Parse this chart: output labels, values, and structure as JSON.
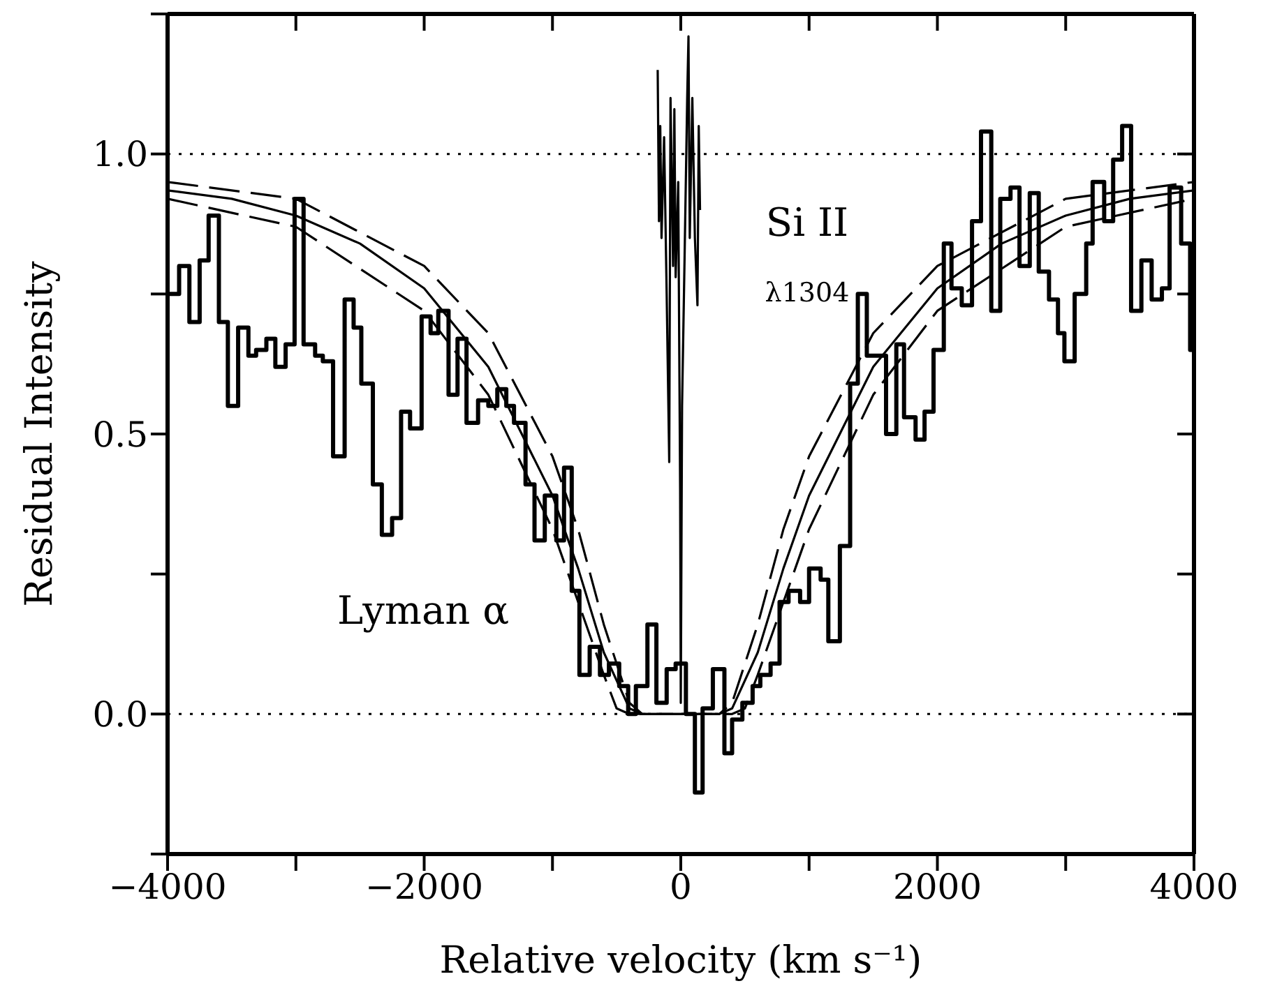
{
  "chart_data": {
    "type": "line",
    "xlabel": "Relative velocity (km s⁻¹)",
    "ylabel": "Residual Intensity",
    "xlim": [
      -4000,
      4000
    ],
    "xticks": [
      -4000,
      {
        "value": -3000,
        "label": null
      },
      -2000,
      {
        "value": -1000,
        "label": null
      },
      0,
      {
        "value": 1000,
        "label": null
      },
      2000,
      {
        "value": 3000,
        "label": null
      },
      4000
    ],
    "ylim": [
      -0.25,
      1.25
    ],
    "yticks": [
      {
        "value": -0.25,
        "label": null
      },
      {
        "value": 0,
        "label": "0.0"
      },
      {
        "value": 0.25,
        "label": null
      },
      {
        "value": 0.5,
        "label": "0.5"
      },
      {
        "value": 0.75,
        "label": null
      },
      {
        "value": 1,
        "label": "1.0"
      },
      {
        "value": 1.25,
        "label": null
      }
    ],
    "ref_lines": [
      {
        "axis": "y",
        "value": 1,
        "color": "#000000",
        "line_style": "dotted"
      },
      {
        "axis": "y",
        "value": 0,
        "color": "#000000",
        "line_style": "dotted"
      }
    ],
    "annotations": [
      "Lyman α",
      "Si II",
      "λ1304"
    ],
    "series": [
      {
        "type": "step",
        "color": "#000000",
        "line_style": "solid",
        "x": [
          -4000,
          -3910,
          -3830,
          -3750,
          -3680,
          -3600,
          -3530,
          -3450,
          -3370,
          -3310,
          -3230,
          -3160,
          -3080,
          -3010,
          -2940,
          -2850,
          -2790,
          -2710,
          -2620,
          -2550,
          -2490,
          -2400,
          -2330,
          -2250,
          -2180,
          -2110,
          -2020,
          -1950,
          -1890,
          -1810,
          -1740,
          -1670,
          -1580,
          -1500,
          -1430,
          -1360,
          -1300,
          -1210,
          -1140,
          -1060,
          -970,
          -910,
          -850,
          -790,
          -710,
          -630,
          -560,
          -480,
          -410,
          -350,
          -260,
          -190,
          -110,
          -40,
          40,
          110,
          170,
          250,
          340,
          400,
          480,
          560,
          620,
          700,
          770,
          840,
          930,
          1000,
          1090,
          1150,
          1240,
          1320,
          1380,
          1450,
          1600,
          1680,
          1740,
          1830,
          1900,
          1970,
          2050,
          2110,
          2190,
          2270,
          2340,
          2420,
          2490,
          2570,
          2640,
          2720,
          2790,
          2870,
          2940,
          2990,
          3070,
          3160,
          3210,
          3300,
          3370,
          3440,
          3510,
          3590,
          3670,
          3750,
          3810,
          3900,
          3970,
          4000
        ],
        "values": [
          0.75,
          0.8,
          0.7,
          0.81,
          0.89,
          0.7,
          0.55,
          0.69,
          0.64,
          0.65,
          0.67,
          0.62,
          0.66,
          0.92,
          0.66,
          0.64,
          0.63,
          0.46,
          0.74,
          0.69,
          0.59,
          0.41,
          0.32,
          0.35,
          0.54,
          0.51,
          0.71,
          0.68,
          0.72,
          0.57,
          0.67,
          0.52,
          0.56,
          0.55,
          0.58,
          0.55,
          0.52,
          0.41,
          0.31,
          0.39,
          0.31,
          0.44,
          0.22,
          0.07,
          0.12,
          0.07,
          0.09,
          0.05,
          0.0,
          0.05,
          0.16,
          0.02,
          0.08,
          0.09,
          0.0,
          -0.14,
          0.01,
          0.08,
          -0.07,
          -0.01,
          0.02,
          0.05,
          0.07,
          0.09,
          0.2,
          0.22,
          0.2,
          0.26,
          0.24,
          0.13,
          0.3,
          0.59,
          0.75,
          0.64,
          0.5,
          0.66,
          0.53,
          0.49,
          0.54,
          0.65,
          0.84,
          0.76,
          0.73,
          0.88,
          1.04,
          0.72,
          0.92,
          0.94,
          0.8,
          0.93,
          0.79,
          0.74,
          0.68,
          0.63,
          0.75,
          0.84,
          0.95,
          0.88,
          0.99,
          1.05,
          0.72,
          0.81,
          0.74,
          0.76,
          0.94,
          0.84,
          0.65,
          0.65
        ]
      },
      {
        "color": "#000000",
        "line_style": "solid",
        "x": [
          -4000,
          -3500,
          -3000,
          -2500,
          -2000,
          -1500,
          -1000,
          -800,
          -600,
          -400,
          -300,
          300,
          400,
          600,
          800,
          1000,
          1500,
          2000,
          2500,
          3000,
          3500,
          4000
        ],
        "values": [
          0.935,
          0.92,
          0.89,
          0.84,
          0.76,
          0.62,
          0.39,
          0.26,
          0.11,
          0.01,
          0,
          0,
          0.01,
          0.11,
          0.26,
          0.39,
          0.62,
          0.76,
          0.84,
          0.89,
          0.92,
          0.935
        ]
      },
      {
        "color": "#000000",
        "line_style": "dashed",
        "x": [
          -4000,
          -3000,
          -2000,
          -1500,
          -1000,
          -800,
          -600,
          -400,
          -300,
          300,
          400,
          600,
          800,
          1000,
          1500,
          2000,
          3000,
          4000
        ],
        "values": [
          0.95,
          0.92,
          0.8,
          0.68,
          0.46,
          0.33,
          0.16,
          0.02,
          0,
          0,
          0.02,
          0.16,
          0.33,
          0.46,
          0.68,
          0.8,
          0.92,
          0.95
        ]
      },
      {
        "color": "#000000",
        "line_style": "dashed",
        "x": [
          -4000,
          -3000,
          -2000,
          -1500,
          -1000,
          -800,
          -600,
          -500,
          -400,
          400,
          500,
          600,
          800,
          1000,
          1500,
          2000,
          3000,
          4000
        ],
        "values": [
          0.92,
          0.87,
          0.72,
          0.57,
          0.33,
          0.2,
          0.07,
          0.01,
          0,
          0,
          0.01,
          0.07,
          0.2,
          0.33,
          0.57,
          0.72,
          0.87,
          0.92
        ]
      },
      {
        "color": "#000000",
        "line_style": "solid",
        "x": [
          -180,
          -170,
          -160,
          -150,
          -130,
          -110,
          -90,
          -80,
          -60,
          -50,
          -40,
          -20,
          -5,
          0,
          10,
          30,
          50,
          60,
          70,
          90,
          110,
          130,
          140,
          150
        ],
        "values": [
          1.15,
          0.88,
          1.05,
          0.85,
          1.03,
          0.75,
          0.45,
          1.1,
          0.8,
          1.08,
          0.78,
          0.95,
          0.4,
          0.02,
          0.55,
          0.82,
          1.1,
          1.21,
          0.85,
          1.1,
          0.85,
          0.73,
          1.05,
          0.9
        ]
      }
    ]
  }
}
